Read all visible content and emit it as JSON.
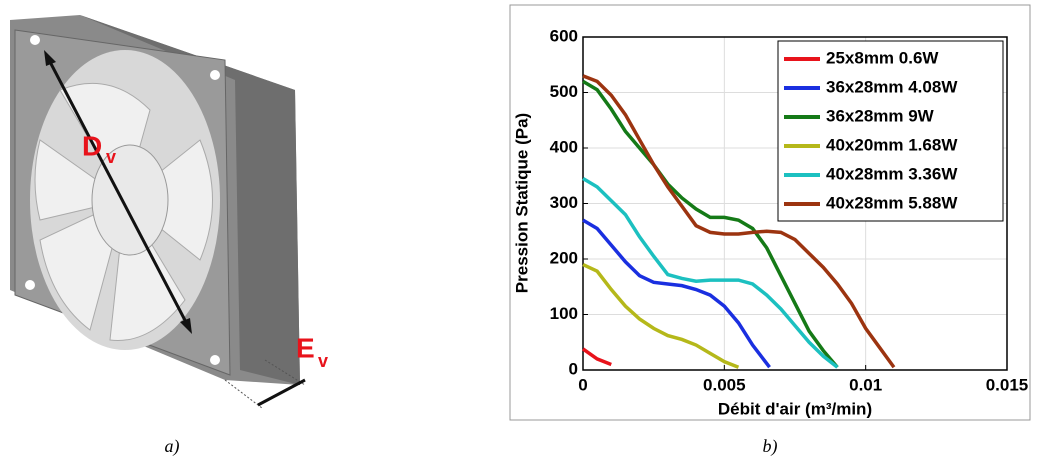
{
  "figure_a": {
    "label_d": "D",
    "label_d_sub": "v",
    "label_e": "E",
    "label_e_sub": "v",
    "caption": "a)"
  },
  "chart_data": {
    "type": "line",
    "caption": "b)",
    "x_label": "Débit d'air (m³/min)",
    "y_label": "Pression Statique (Pa)",
    "xlim": [
      0,
      0.015
    ],
    "xticks": [
      0,
      0.005,
      0.01,
      0.015
    ],
    "ylim": [
      0,
      600
    ],
    "yticks": [
      0,
      100,
      200,
      300,
      400,
      500,
      600
    ],
    "grid": true,
    "legend": "upper right",
    "series": [
      {
        "name": "25x8mm 0.6W",
        "color": "#e8131b",
        "x": [
          0,
          0.0005,
          0.001
        ],
        "values": [
          38,
          20,
          10
        ]
      },
      {
        "name": "36x28mm 4.08W",
        "color": "#1a2fe0",
        "x": [
          0,
          0.0005,
          0.001,
          0.0015,
          0.002,
          0.0025,
          0.003,
          0.0035,
          0.004,
          0.0045,
          0.005,
          0.0055,
          0.006,
          0.0066
        ],
        "values": [
          270,
          255,
          225,
          195,
          170,
          158,
          155,
          152,
          145,
          135,
          115,
          85,
          45,
          5
        ]
      },
      {
        "name": "36x28mm 9W",
        "color": "#157a17",
        "x": [
          0,
          0.0005,
          0.001,
          0.0015,
          0.002,
          0.0025,
          0.003,
          0.0035,
          0.004,
          0.0045,
          0.005,
          0.0055,
          0.006,
          0.0065,
          0.007,
          0.0075,
          0.008,
          0.0085,
          0.009
        ],
        "values": [
          520,
          505,
          470,
          430,
          400,
          370,
          335,
          310,
          290,
          275,
          275,
          270,
          255,
          220,
          170,
          120,
          70,
          35,
          5
        ]
      },
      {
        "name": "40x20mm 1.68W",
        "color": "#b5b81a",
        "x": [
          0,
          0.0005,
          0.001,
          0.0015,
          0.002,
          0.0025,
          0.003,
          0.0035,
          0.004,
          0.0045,
          0.005,
          0.0055
        ],
        "values": [
          190,
          178,
          145,
          115,
          92,
          75,
          62,
          55,
          45,
          30,
          15,
          5
        ]
      },
      {
        "name": "40x28mm 3.36W",
        "color": "#1cc0c0",
        "x": [
          0,
          0.0005,
          0.001,
          0.0015,
          0.002,
          0.0025,
          0.003,
          0.0035,
          0.004,
          0.0045,
          0.005,
          0.0055,
          0.006,
          0.0065,
          0.007,
          0.0075,
          0.008,
          0.0085,
          0.009
        ],
        "values": [
          345,
          330,
          305,
          280,
          240,
          205,
          172,
          165,
          160,
          162,
          162,
          162,
          155,
          135,
          110,
          80,
          50,
          25,
          5
        ]
      },
      {
        "name": "40x28mm 5.88W",
        "color": "#9c3410",
        "x": [
          0,
          0.0005,
          0.001,
          0.0015,
          0.002,
          0.0025,
          0.003,
          0.0035,
          0.004,
          0.0045,
          0.005,
          0.0055,
          0.006,
          0.0065,
          0.007,
          0.0075,
          0.008,
          0.0085,
          0.009,
          0.0095,
          0.01,
          0.0105,
          0.011
        ],
        "values": [
          530,
          520,
          495,
          460,
          415,
          370,
          330,
          295,
          260,
          248,
          245,
          245,
          248,
          250,
          248,
          235,
          210,
          185,
          155,
          120,
          75,
          40,
          5
        ]
      }
    ]
  }
}
